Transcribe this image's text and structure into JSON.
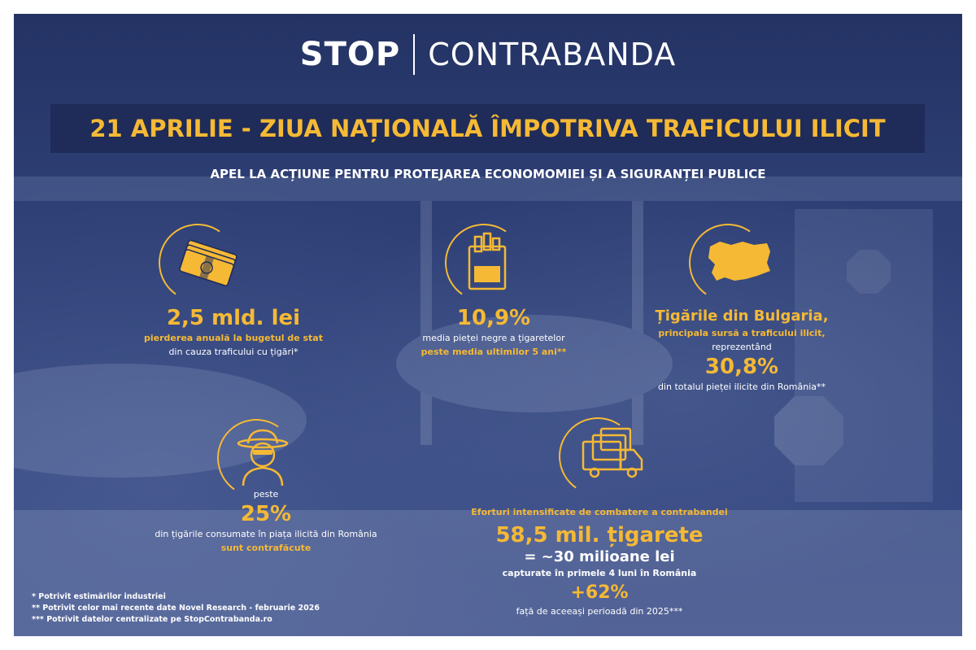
{
  "logo": {
    "stop": "STOP",
    "contrabanda": "CONTRABANDA"
  },
  "title": "21 APRILIE - ZIUA NAȚIONALĂ ÎMPOTRIVA TRAFICULUI ILICIT",
  "subtitle": "APEL LA ACȚIUNE PENTRU PROTEJAREA ECONOMOMIEI ȘI A SIGURANȚEI PUBLICE",
  "stats": {
    "loss": {
      "icon": "money-stack-icon",
      "value": "2,5 mld. lei",
      "line1": "pierderea anuală la bugetul de stat",
      "line2": "din cauza traficului cu țigări*"
    },
    "blackmarket": {
      "icon": "cigarette-pack-icon",
      "value": "10,9%",
      "line1": "media pieței negre a țigaretelor",
      "line2": "peste media ultimilor 5 ani**"
    },
    "bulgaria": {
      "icon": "bulgaria-map-icon",
      "heading": "Țigările din Bulgaria,",
      "line1": "principala sursă a traficului ilicit,",
      "line2": "reprezentând",
      "value": "30,8%",
      "line3": "din totalul pieței ilicite din România**"
    },
    "counterfeit": {
      "icon": "spy-icon",
      "pre": "peste",
      "value": "25%",
      "line1": "din țigările consumate în piața ilicită din România",
      "line2": "sunt contrafăcute"
    },
    "seizures": {
      "icon": "trucks-icon",
      "heading": "Eforturi intensificate de combatere a contrabandei",
      "value": "58,5 mil. țigarete",
      "equiv": "= ~30 milioane lei",
      "line1": "capturate în primele 4 luni în România",
      "increase": "+62%",
      "line2": "față de aceeași perioadă din 2025***"
    }
  },
  "footnotes": [
    "*  Potrivit estimărilor industriei",
    "** Potrivit celor mai recente date Novel Research - februarie 2026",
    "*** Potrivit datelor centralizate pe StopContrabanda.ro"
  ],
  "colors": {
    "accent": "#f5b935",
    "background": "#2f4178",
    "title_box": "#1f2b58"
  }
}
